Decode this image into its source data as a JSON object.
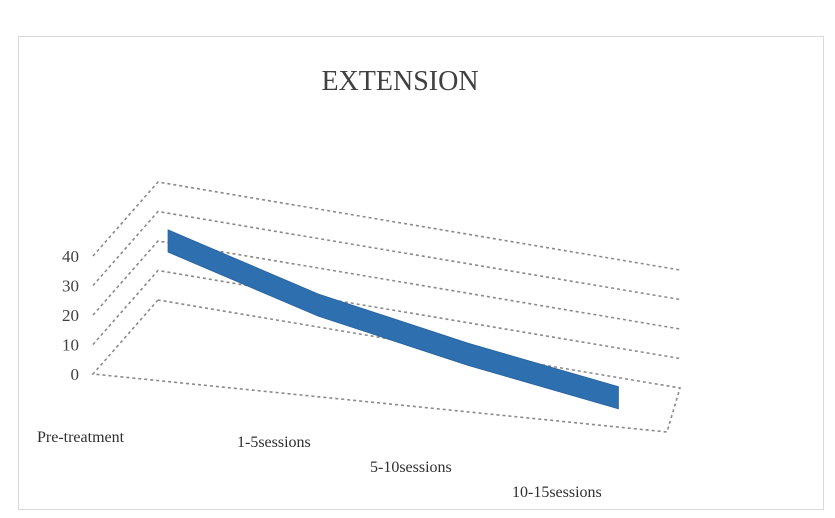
{
  "chart_data": {
    "type": "line",
    "style": "3d-line",
    "title": "EXTENSION",
    "categories": [
      "Pre-treatment",
      "1-5sessions",
      "5-10sessions",
      "10-15sessions"
    ],
    "series": [
      {
        "values": [
          35,
          20,
          10,
          2
        ]
      }
    ],
    "y_ticks": [
      "0",
      "10",
      "20",
      "30",
      "40"
    ],
    "ylim": [
      0,
      40
    ],
    "grid": true,
    "legend": "none",
    "series_color": "#2e6fb0"
  }
}
